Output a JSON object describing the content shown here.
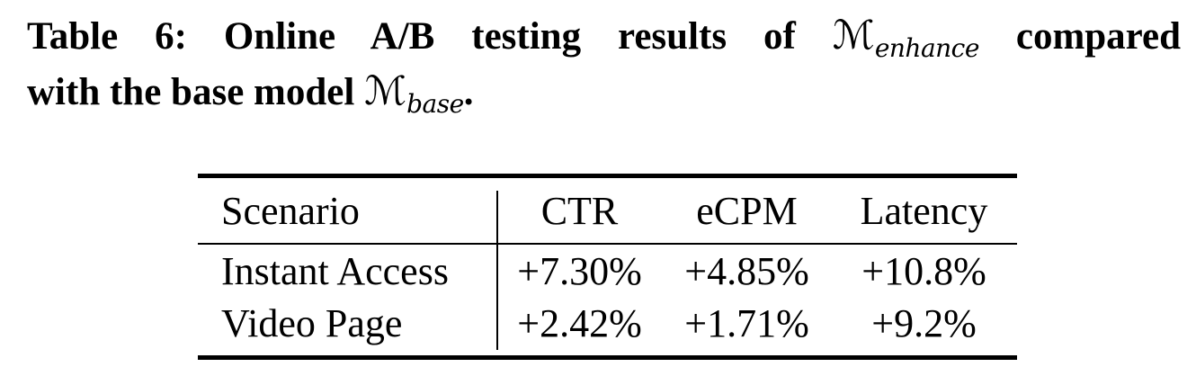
{
  "caption": {
    "line1_prefix": "Table 6: Online A/B testing results of ",
    "model_enhance_symbol": "ℳ",
    "model_enhance_sub": "enhance",
    "line1_suffix": " compared",
    "line2_prefix": "with the base model ",
    "model_base_symbol": "ℳ",
    "model_base_sub": "base",
    "line2_suffix": "."
  },
  "table": {
    "columns": [
      "Scenario",
      "CTR",
      "eCPM",
      "Latency"
    ],
    "rows": [
      {
        "scenario": "Instant Access",
        "ctr": "+7.30%",
        "ecpm": "+4.85%",
        "latency": "+10.8%"
      },
      {
        "scenario": "Video Page",
        "ctr": "+2.42%",
        "ecpm": "+1.71%",
        "latency": "+9.2%"
      }
    ]
  },
  "colors": {
    "text": "#000000",
    "background": "#ffffff",
    "rule": "#000000"
  }
}
